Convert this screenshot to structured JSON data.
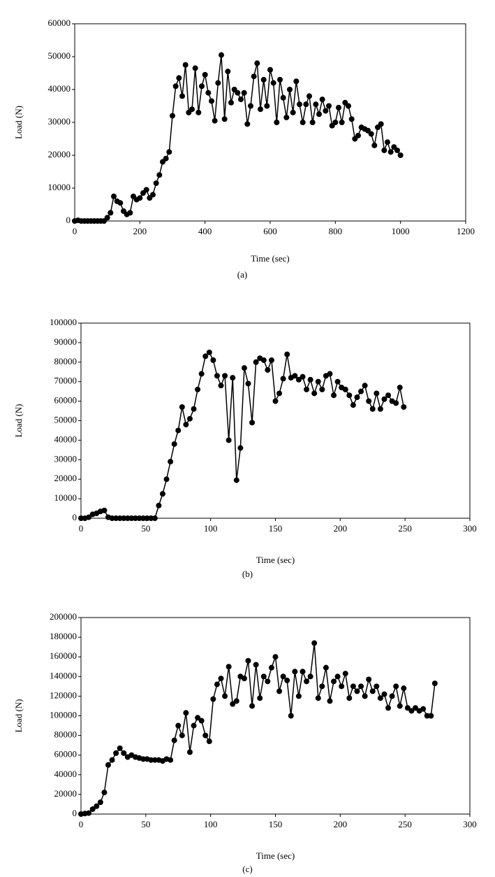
{
  "chart_data": [
    {
      "type": "line",
      "xlabel": "Time (sec)",
      "ylabel": "Load (N)",
      "caption": "(a)",
      "x": [
        0,
        10,
        20,
        30,
        40,
        50,
        60,
        70,
        80,
        90,
        100,
        110,
        120,
        130,
        140,
        150,
        160,
        170,
        180,
        190,
        200,
        210,
        220,
        230,
        240,
        250,
        260,
        270,
        280,
        290,
        300,
        310,
        320,
        330,
        340,
        350,
        360,
        370,
        380,
        390,
        400,
        410,
        420,
        430,
        440,
        450,
        460,
        470,
        480,
        490,
        500,
        510,
        520,
        530,
        540,
        550,
        560,
        570,
        580,
        590,
        600,
        610,
        620,
        630,
        640,
        650,
        660,
        670,
        680,
        690,
        700,
        710,
        720,
        730,
        740,
        750,
        760,
        770,
        780,
        790,
        800,
        810,
        820,
        830,
        840,
        850,
        860,
        870,
        880,
        890,
        900,
        910,
        920,
        930,
        940,
        950,
        960,
        970,
        980,
        990,
        1000
      ],
      "series": [
        {
          "color": "#000000",
          "values": [
            0,
            200,
            0,
            0,
            0,
            0,
            0,
            0,
            0,
            0,
            1000,
            2500,
            7500,
            6000,
            5500,
            3000,
            2000,
            2500,
            7500,
            6500,
            7000,
            8500,
            9500,
            7000,
            8000,
            11500,
            14000,
            18000,
            19000,
            21000,
            32000,
            41000,
            43500,
            38000,
            47500,
            33000,
            34000,
            46500,
            33000,
            41000,
            44500,
            39000,
            36500,
            30500,
            42000,
            50500,
            31000,
            45500,
            36000,
            40000,
            39000,
            37000,
            39000,
            29500,
            35000,
            44000,
            48000,
            34000,
            43000,
            35000,
            46000,
            42000,
            30000,
            43000,
            37500,
            31500,
            40000,
            33000,
            42500,
            35500,
            30000,
            35500,
            38000,
            30000,
            35500,
            32500,
            37000,
            33500,
            35000,
            29000,
            30000,
            34500,
            30000,
            36000,
            35000,
            31000,
            25000,
            26000,
            28500,
            28000,
            27500,
            26500,
            23000,
            28500,
            29500,
            21500,
            24000,
            21000,
            22500,
            21500,
            20000
          ]
        }
      ],
      "xlim": [
        0,
        1200
      ],
      "xticks": [
        0,
        200,
        400,
        600,
        800,
        1000,
        1200
      ],
      "ylim": [
        0,
        60000
      ],
      "yticks": [
        0,
        10000,
        20000,
        30000,
        40000,
        50000,
        60000
      ]
    },
    {
      "type": "line",
      "xlabel": "Time (sec)",
      "ylabel": "Load (N)",
      "caption": "(b)",
      "x": [
        0,
        3,
        6,
        9,
        12,
        15,
        18,
        21,
        24,
        27,
        30,
        33,
        36,
        39,
        42,
        45,
        48,
        51,
        54,
        57,
        60,
        63,
        66,
        69,
        72,
        75,
        78,
        81,
        84,
        87,
        90,
        93,
        96,
        99,
        102,
        105,
        108,
        111,
        114,
        117,
        120,
        123,
        126,
        129,
        132,
        135,
        138,
        141,
        144,
        147,
        150,
        153,
        156,
        159,
        162,
        165,
        168,
        171,
        174,
        177,
        180,
        183,
        186,
        189,
        192,
        195,
        198,
        201,
        204,
        207,
        210,
        213,
        216,
        219,
        222,
        225,
        228,
        231,
        234,
        237,
        240,
        243,
        246,
        249
      ],
      "series": [
        {
          "color": "#000000",
          "values": [
            0,
            0,
            500,
            2000,
            2500,
            3500,
            4000,
            500,
            0,
            0,
            0,
            0,
            0,
            0,
            0,
            0,
            0,
            0,
            0,
            0,
            6500,
            12500,
            20000,
            29000,
            38000,
            45000,
            57000,
            48000,
            51000,
            56000,
            66000,
            74000,
            83000,
            85000,
            81000,
            73000,
            68000,
            73000,
            40000,
            72000,
            19500,
            36000,
            77000,
            69000,
            49000,
            80000,
            82000,
            81000,
            76000,
            81000,
            60000,
            64000,
            71500,
            84000,
            72000,
            73000,
            71000,
            72500,
            66000,
            71000,
            64000,
            70000,
            66000,
            73000,
            74000,
            63000,
            70000,
            67000,
            66000,
            63000,
            58000,
            62000,
            65000,
            68000,
            60000,
            56000,
            64000,
            56000,
            61000,
            63000,
            60000,
            59000,
            67000,
            57000
          ]
        }
      ],
      "xlim": [
        0,
        300
      ],
      "xticks": [
        0,
        50,
        100,
        150,
        200,
        250,
        300
      ],
      "ylim": [
        0,
        100000
      ],
      "yticks": [
        0,
        10000,
        20000,
        30000,
        40000,
        50000,
        60000,
        70000,
        80000,
        90000,
        100000
      ]
    },
    {
      "type": "line",
      "xlabel": "Time (sec)",
      "ylabel": "Load (N)",
      "caption": "(c)",
      "x": [
        0,
        3,
        6,
        9,
        12,
        15,
        18,
        21,
        24,
        27,
        30,
        33,
        36,
        39,
        42,
        45,
        48,
        51,
        54,
        57,
        60,
        63,
        66,
        69,
        72,
        75,
        78,
        81,
        84,
        87,
        90,
        93,
        96,
        99,
        102,
        105,
        108,
        111,
        114,
        117,
        120,
        123,
        126,
        129,
        132,
        135,
        138,
        141,
        144,
        147,
        150,
        153,
        156,
        159,
        162,
        165,
        168,
        171,
        174,
        177,
        180,
        183,
        186,
        189,
        192,
        195,
        198,
        201,
        204,
        207,
        210,
        213,
        216,
        219,
        222,
        225,
        228,
        231,
        234,
        237,
        240,
        243,
        246,
        249,
        252,
        255,
        258,
        261,
        264,
        267,
        270,
        273
      ],
      "series": [
        {
          "color": "#000000",
          "values": [
            0,
            500,
            1000,
            5000,
            8000,
            12000,
            22000,
            50000,
            55000,
            62000,
            67000,
            62000,
            58000,
            60000,
            58000,
            57000,
            56000,
            56000,
            55000,
            55000,
            55000,
            54000,
            56000,
            55000,
            75000,
            90000,
            80000,
            103000,
            63000,
            90000,
            98000,
            95000,
            80000,
            74000,
            117000,
            132000,
            138000,
            120000,
            150000,
            112000,
            115000,
            140000,
            138000,
            156000,
            110000,
            152000,
            118000,
            140000,
            135000,
            149000,
            160000,
            125000,
            140000,
            136000,
            100000,
            145000,
            120000,
            145000,
            135000,
            140000,
            174000,
            118000,
            130000,
            149000,
            115000,
            135000,
            140000,
            130000,
            143000,
            118000,
            130000,
            125000,
            130000,
            120000,
            137000,
            125000,
            130000,
            118000,
            122000,
            108000,
            120000,
            130000,
            110000,
            128000,
            108000,
            105000,
            108000,
            105000,
            107000,
            100000,
            100000,
            133000
          ]
        }
      ],
      "xlim": [
        0,
        300
      ],
      "xticks": [
        0,
        50,
        100,
        150,
        200,
        250,
        300
      ],
      "ylim": [
        0,
        200000
      ],
      "yticks": [
        0,
        20000,
        40000,
        60000,
        80000,
        100000,
        120000,
        140000,
        160000,
        180000,
        200000
      ]
    }
  ]
}
